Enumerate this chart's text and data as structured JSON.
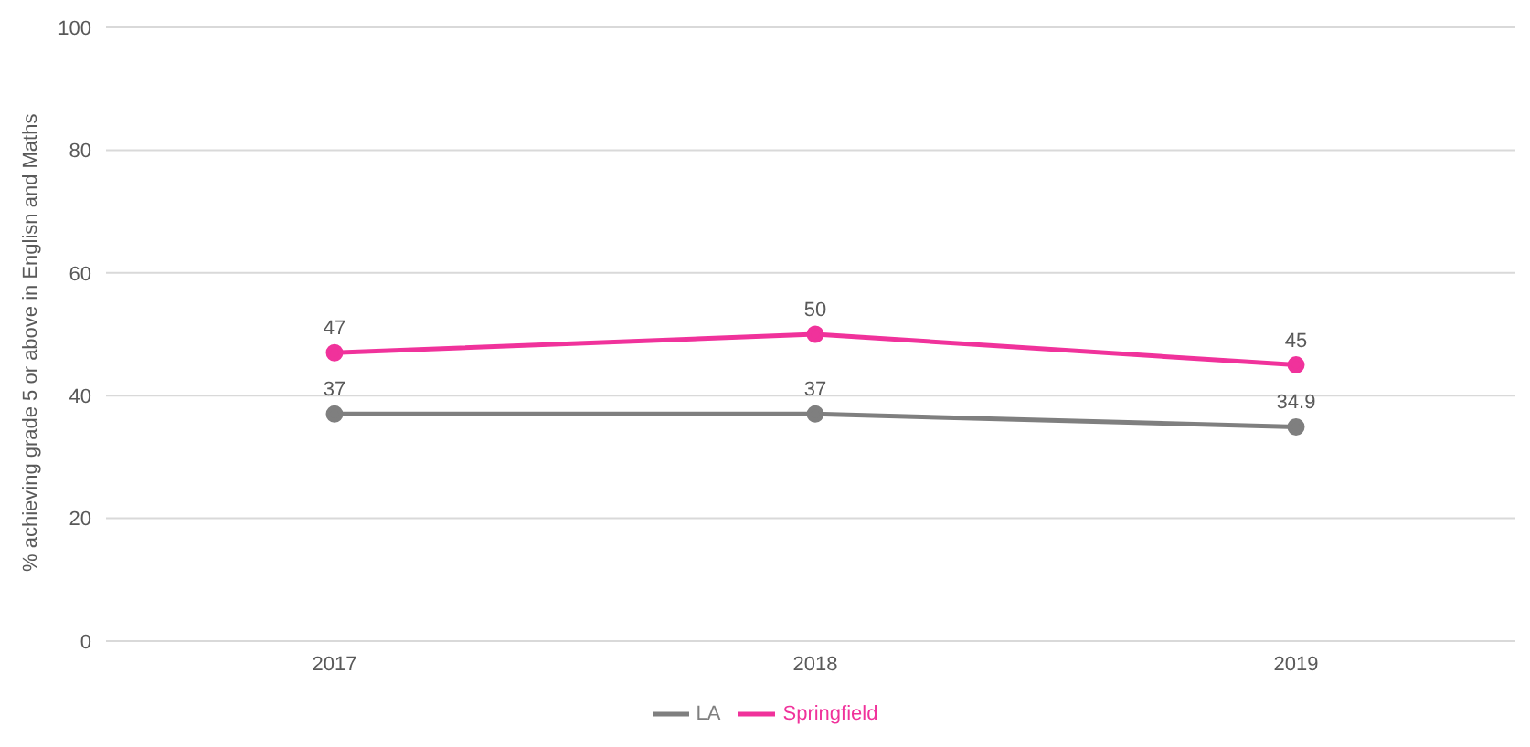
{
  "chart_data": {
    "type": "line",
    "ylabel": "% achieving grade 5 or above in Englisn and Maths",
    "categories": [
      "2017",
      "2018",
      "2019"
    ],
    "series": [
      {
        "name": "LA",
        "color": "#7f7f7f",
        "values": [
          37,
          37,
          34.9
        ]
      },
      {
        "name": "Springfield",
        "color": "#f0329b",
        "values": [
          47,
          50,
          45
        ]
      }
    ],
    "ylim": [
      0,
      100
    ],
    "yticks": [
      0,
      20,
      40,
      60,
      80,
      100
    ],
    "grid": "y",
    "legend": "bottom",
    "marker": "circle",
    "data_labels": true
  }
}
